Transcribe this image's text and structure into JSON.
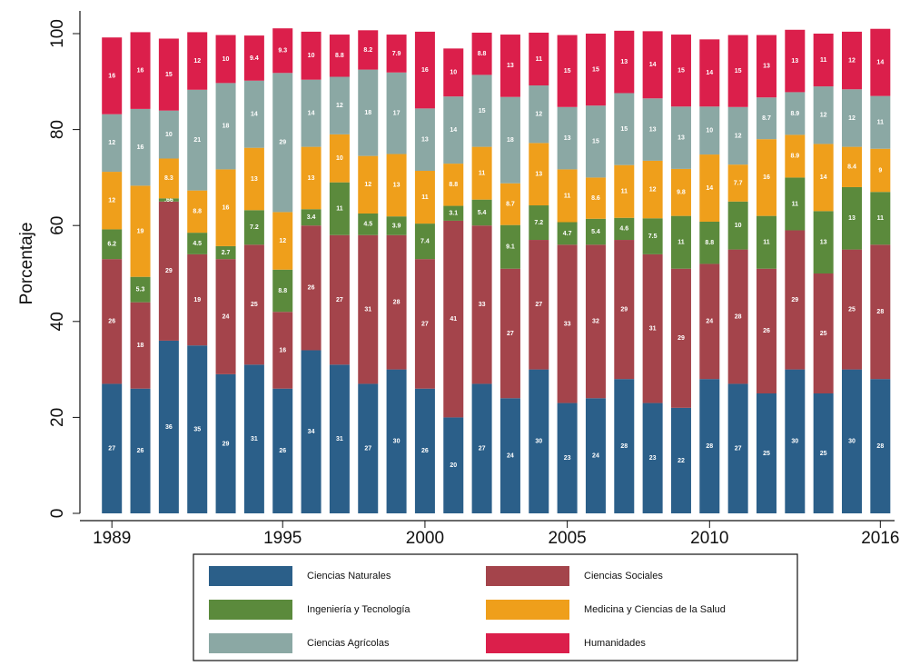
{
  "chart_data": {
    "type": "stacked-bar",
    "y_label": "Porcentaje",
    "x": [
      1989,
      1990,
      1991,
      1992,
      1993,
      1994,
      1995,
      1996,
      1997,
      1998,
      1999,
      2000,
      2001,
      2002,
      2003,
      2004,
      2005,
      2006,
      2007,
      2008,
      2009,
      2010,
      2011,
      2012,
      2013,
      2014,
      2015,
      2016
    ],
    "xlim": [
      1988.1,
      2016.5
    ],
    "xticks": [
      1989,
      1995,
      2000,
      2005,
      2010,
      2016
    ],
    "ylim": [
      0,
      100
    ],
    "yticks": [
      0,
      20,
      40,
      60,
      80,
      100
    ],
    "grid": false,
    "legend": "bottom",
    "series": [
      {
        "name": "Ciencias Naturales",
        "color": "#2b5f89",
        "values": [
          27,
          26,
          36,
          35,
          29,
          31,
          26,
          34,
          31,
          27,
          30,
          26,
          20,
          27,
          24,
          30,
          23,
          24,
          28,
          23,
          22,
          28,
          27,
          25,
          30,
          25,
          30,
          28
        ]
      },
      {
        "name": "Ciencias Sociales",
        "color": "#a4444b",
        "values": [
          26,
          18,
          29,
          19,
          24,
          25,
          16,
          26,
          27,
          31,
          28,
          27,
          41,
          33,
          27,
          27,
          33,
          32,
          29,
          31,
          29,
          24,
          28,
          26,
          29,
          25,
          25,
          28
        ]
      },
      {
        "name": "Ingeniería y Tecnología",
        "color": "#5b8a3c",
        "values": [
          6.2,
          5.3,
          0.66,
          4.5,
          2.7,
          7.2,
          8.8,
          3.4,
          11,
          4.5,
          3.9,
          7.4,
          3.1,
          5.4,
          9.1,
          7.2,
          4.7,
          5.4,
          4.6,
          7.5,
          11,
          8.8,
          10,
          11,
          11,
          13,
          13,
          11
        ],
        "value_labels": [
          "6.2",
          "5.3",
          ".66",
          "4.5",
          "2.7",
          "7.2",
          "8.8",
          "3.4",
          "11",
          "4.5",
          "3.9",
          "7.4",
          "3.1",
          "5.4",
          "9.1",
          "7.2",
          "4.7",
          "5.4",
          "4.6",
          "7.5",
          "11",
          "8.8",
          "10",
          "11",
          "11",
          "13",
          "13",
          "11"
        ]
      },
      {
        "name": "Medicina y Ciencias de la Salud",
        "color": "#ef9f1b",
        "values": [
          12,
          19,
          8.3,
          8.8,
          16,
          13,
          12,
          13,
          10,
          12,
          13,
          11,
          8.8,
          11,
          8.7,
          13,
          11,
          8.6,
          11,
          12,
          9.8,
          14,
          7.7,
          16,
          8.9,
          14,
          8.4,
          9
        ]
      },
      {
        "name": "Ciencias Agrícolas",
        "color": "#8ba8a4",
        "values": [
          12,
          16,
          10,
          21,
          18,
          14,
          29,
          14,
          12,
          18,
          17,
          13,
          14,
          15,
          18,
          12,
          13,
          15,
          15,
          13,
          13,
          10,
          12,
          8.7,
          8.9,
          12,
          12,
          11
        ]
      },
      {
        "name": "Humanidades",
        "color": "#db1f4b",
        "values": [
          16,
          16,
          15,
          12,
          10,
          9.4,
          9.3,
          10,
          8.8,
          8.2,
          7.9,
          16,
          10,
          8.8,
          13,
          11,
          15,
          15,
          13,
          14,
          15,
          14,
          15,
          13,
          13,
          11,
          12,
          14
        ]
      }
    ]
  }
}
